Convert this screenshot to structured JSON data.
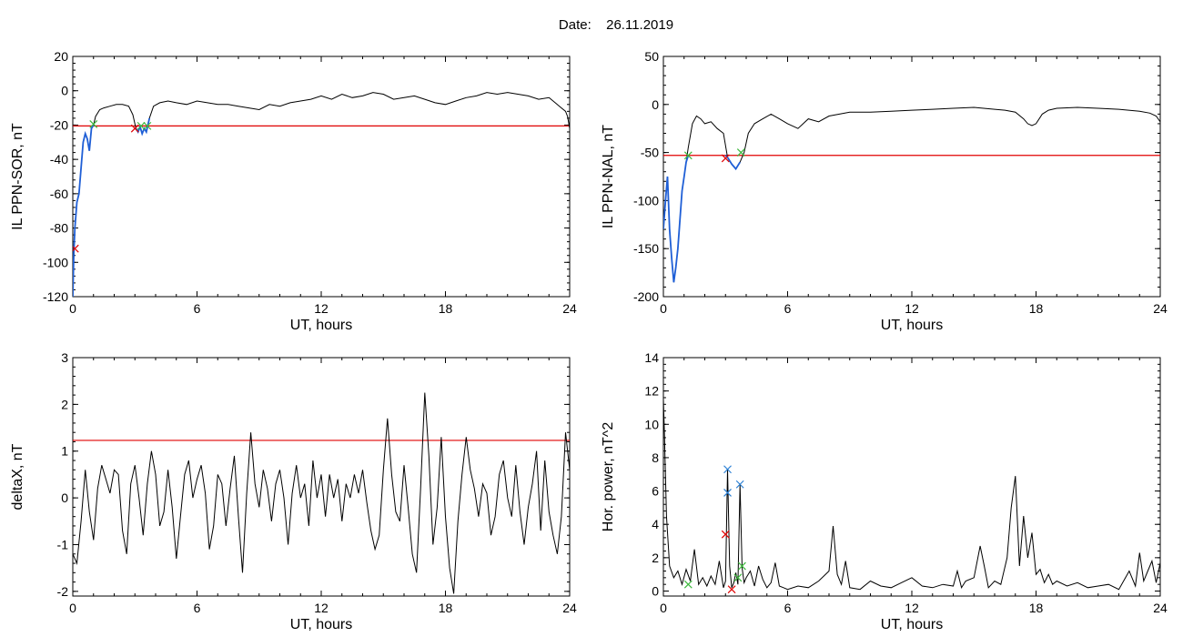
{
  "figure": {
    "date_label": "Date:",
    "date_value": "26.11.2019"
  },
  "colors": {
    "trace": "#000000",
    "threshold": "#e00000",
    "highlight": "#1f5fd6",
    "marker_red": "#e00000",
    "marker_green": "#3cb83c",
    "marker_blue": "#2a7fd4"
  },
  "chart_data": [
    {
      "id": "il-sor",
      "type": "line",
      "title": "",
      "xlabel": "UT, hours",
      "ylabel": "IL PPN-SOR, nT",
      "xlim": [
        0,
        24
      ],
      "ylim": [
        -120,
        20
      ],
      "xticks": [
        0,
        6,
        12,
        18,
        24
      ],
      "yticks": [
        -120,
        -100,
        -80,
        -60,
        -40,
        -20,
        0,
        20
      ],
      "grid": false,
      "threshold": -20.5,
      "series": [
        {
          "role": "trace",
          "x": [
            0,
            0.05,
            0.1,
            0.2,
            0.3,
            0.4,
            0.5,
            0.6,
            0.7,
            0.8,
            0.9,
            1.0,
            1.1,
            1.3,
            1.5,
            1.8,
            2.1,
            2.4,
            2.7,
            2.9,
            3.05,
            3.15,
            3.25,
            3.35,
            3.45,
            3.55,
            3.7,
            3.9,
            4.2,
            4.6,
            5.0,
            5.5,
            6.0,
            6.5,
            7.0,
            7.5,
            8.0,
            8.5,
            9.0,
            9.5,
            10.0,
            10.5,
            11.0,
            11.5,
            12.0,
            12.5,
            13.0,
            13.5,
            14.0,
            14.5,
            15.0,
            15.5,
            16.0,
            16.5,
            17.0,
            17.5,
            18.0,
            18.5,
            19.0,
            19.5,
            20.0,
            20.5,
            21.0,
            21.5,
            22.0,
            22.5,
            23.0,
            23.3,
            23.6,
            23.8,
            23.9,
            24.0
          ],
          "y": [
            -120,
            -95,
            -80,
            -65,
            -60,
            -45,
            -30,
            -25,
            -28,
            -35,
            -22,
            -20,
            -15,
            -11,
            -10,
            -9,
            -8,
            -8,
            -9,
            -14,
            -22,
            -24,
            -21,
            -25,
            -22,
            -24,
            -16,
            -9,
            -7,
            -6,
            -7,
            -8,
            -6,
            -7,
            -8,
            -8,
            -9,
            -10,
            -11,
            -8,
            -9,
            -7,
            -6,
            -5,
            -3,
            -5,
            -2,
            -4,
            -3,
            -1,
            -2,
            -5,
            -4,
            -3,
            -5,
            -7,
            -8,
            -6,
            -4,
            -3,
            -1,
            -2,
            -1,
            -2,
            -3,
            -5,
            -4,
            -7,
            -10,
            -12,
            -15,
            -22
          ]
        },
        {
          "role": "highlight",
          "x": [
            0,
            0.05,
            0.1,
            0.2,
            0.3,
            0.4,
            0.5,
            0.6,
            0.7,
            0.8,
            0.9,
            1.0
          ],
          "y": [
            -120,
            -95,
            -80,
            -65,
            -60,
            -45,
            -30,
            -25,
            -28,
            -35,
            -22,
            -20
          ]
        },
        {
          "role": "highlight",
          "x": [
            3.05,
            3.15,
            3.25,
            3.35,
            3.45,
            3.55,
            3.7
          ],
          "y": [
            -22,
            -24,
            -21,
            -25,
            -22,
            -24,
            -16
          ]
        }
      ],
      "markers": [
        {
          "x": 0.1,
          "y": -92,
          "color": "red"
        },
        {
          "x": 1.0,
          "y": -19.5,
          "color": "green"
        },
        {
          "x": 3.0,
          "y": -22,
          "color": "red"
        },
        {
          "x": 3.3,
          "y": -20.5,
          "color": "green"
        },
        {
          "x": 3.6,
          "y": -20.5,
          "color": "green"
        }
      ]
    },
    {
      "id": "il-nal",
      "type": "line",
      "title": "",
      "xlabel": "UT, hours",
      "ylabel": "IL PPN-NAL, nT",
      "xlim": [
        0,
        24
      ],
      "ylim": [
        -200,
        50
      ],
      "xticks": [
        0,
        6,
        12,
        18,
        24
      ],
      "yticks": [
        -200,
        -150,
        -100,
        -50,
        0,
        50
      ],
      "grid": false,
      "threshold": -53,
      "series": [
        {
          "role": "trace",
          "x": [
            0,
            0.1,
            0.2,
            0.3,
            0.4,
            0.5,
            0.6,
            0.7,
            0.8,
            0.9,
            1.0,
            1.1,
            1.2,
            1.4,
            1.6,
            1.8,
            2.0,
            2.3,
            2.6,
            2.9,
            3.1,
            3.3,
            3.5,
            3.7,
            3.9,
            4.1,
            4.4,
            4.8,
            5.2,
            5.6,
            6.0,
            6.5,
            7.0,
            7.5,
            8.0,
            8.5,
            9.0,
            10.0,
            11.0,
            12.0,
            13.0,
            14.0,
            15.0,
            16.0,
            16.5,
            17.0,
            17.4,
            17.6,
            17.8,
            18.0,
            18.3,
            18.6,
            19.0,
            20.0,
            21.0,
            22.0,
            23.0,
            23.5,
            23.8,
            24.0
          ],
          "y": [
            -130,
            -100,
            -75,
            -130,
            -160,
            -185,
            -170,
            -150,
            -120,
            -90,
            -75,
            -60,
            -45,
            -20,
            -12,
            -15,
            -20,
            -18,
            -25,
            -30,
            -55,
            -62,
            -67,
            -60,
            -50,
            -30,
            -20,
            -15,
            -10,
            -15,
            -20,
            -25,
            -15,
            -18,
            -12,
            -10,
            -8,
            -8,
            -7,
            -6,
            -5,
            -4,
            -3,
            -5,
            -6,
            -8,
            -15,
            -20,
            -22,
            -20,
            -10,
            -6,
            -4,
            -3,
            -4,
            -5,
            -7,
            -9,
            -12,
            -18
          ]
        },
        {
          "role": "highlight",
          "x": [
            0,
            0.1,
            0.2,
            0.3,
            0.4,
            0.5,
            0.6,
            0.7,
            0.8,
            0.9,
            1.0,
            1.1,
            1.2
          ],
          "y": [
            -130,
            -100,
            -75,
            -130,
            -160,
            -185,
            -170,
            -150,
            -120,
            -90,
            -75,
            -60,
            -53
          ]
        },
        {
          "role": "highlight",
          "x": [
            3.0,
            3.1,
            3.3,
            3.5,
            3.7
          ],
          "y": [
            -53,
            -55,
            -62,
            -67,
            -60
          ]
        }
      ],
      "markers": [
        {
          "x": 1.2,
          "y": -53,
          "color": "green"
        },
        {
          "x": 3.0,
          "y": -56,
          "color": "red"
        },
        {
          "x": 3.75,
          "y": -50,
          "color": "green"
        }
      ]
    },
    {
      "id": "deltax",
      "type": "line",
      "title": "",
      "xlabel": "UT, hours",
      "ylabel": "deltaX, nT",
      "xlim": [
        0,
        24
      ],
      "ylim": [
        -2.1,
        3
      ],
      "xticks": [
        0,
        6,
        12,
        18,
        24
      ],
      "yticks": [
        -2,
        -1,
        0,
        1,
        2,
        3
      ],
      "grid": false,
      "threshold": 1.23,
      "series": [
        {
          "role": "trace",
          "x": [
            0,
            0.2,
            0.4,
            0.6,
            0.8,
            1.0,
            1.2,
            1.4,
            1.6,
            1.8,
            2.0,
            2.2,
            2.4,
            2.6,
            2.8,
            3.0,
            3.2,
            3.4,
            3.6,
            3.8,
            4.0,
            4.2,
            4.4,
            4.6,
            4.8,
            5.0,
            5.2,
            5.4,
            5.6,
            5.8,
            6.0,
            6.2,
            6.4,
            6.6,
            6.8,
            7.0,
            7.2,
            7.4,
            7.6,
            7.8,
            8.0,
            8.2,
            8.4,
            8.6,
            8.8,
            9.0,
            9.2,
            9.4,
            9.6,
            9.8,
            10.0,
            10.2,
            10.4,
            10.6,
            10.8,
            11.0,
            11.2,
            11.4,
            11.6,
            11.8,
            12.0,
            12.2,
            12.4,
            12.6,
            12.8,
            13.0,
            13.2,
            13.4,
            13.6,
            13.8,
            14.0,
            14.2,
            14.4,
            14.6,
            14.8,
            15.0,
            15.2,
            15.4,
            15.6,
            15.8,
            16.0,
            16.2,
            16.4,
            16.6,
            16.8,
            17.0,
            17.2,
            17.4,
            17.6,
            17.8,
            18.0,
            18.2,
            18.4,
            18.6,
            18.8,
            19.0,
            19.2,
            19.4,
            19.6,
            19.8,
            20.0,
            20.2,
            20.4,
            20.6,
            20.8,
            21.0,
            21.2,
            21.4,
            21.6,
            21.8,
            22.0,
            22.2,
            22.4,
            22.6,
            22.8,
            23.0,
            23.2,
            23.4,
            23.6,
            23.8,
            24.0
          ],
          "y": [
            -1.2,
            -1.4,
            -0.5,
            0.6,
            -0.3,
            -0.9,
            0.2,
            0.7,
            0.4,
            0.1,
            0.6,
            0.5,
            -0.7,
            -1.2,
            0.3,
            0.7,
            0.0,
            -0.8,
            0.3,
            1.0,
            0.5,
            -0.6,
            -0.3,
            0.6,
            -0.2,
            -1.3,
            -0.4,
            0.5,
            0.8,
            0.0,
            0.4,
            0.7,
            0.1,
            -1.1,
            -0.6,
            0.5,
            0.3,
            -0.6,
            0.2,
            0.9,
            -0.4,
            -1.6,
            0.1,
            1.4,
            0.3,
            -0.2,
            0.6,
            0.2,
            -0.5,
            0.3,
            0.6,
            0.0,
            -1.0,
            0.1,
            0.7,
            0.0,
            0.3,
            -0.6,
            0.8,
            0.0,
            0.5,
            -0.4,
            0.5,
            0.0,
            0.4,
            -0.5,
            0.3,
            0.0,
            0.5,
            0.1,
            0.6,
            -0.1,
            -0.7,
            -1.1,
            -0.8,
            0.6,
            1.7,
            0.5,
            -0.3,
            -0.5,
            0.7,
            -0.2,
            -1.2,
            -1.6,
            0.2,
            2.25,
            0.9,
            -1.0,
            -0.2,
            1.3,
            -0.4,
            -1.5,
            -2.05,
            -0.5,
            0.5,
            1.3,
            0.6,
            0.2,
            -0.4,
            0.3,
            0.1,
            -0.8,
            -0.4,
            0.5,
            0.8,
            0.0,
            -0.4,
            0.7,
            -0.3,
            -1.0,
            -0.2,
            0.3,
            1.0,
            -0.7,
            0.8,
            -0.3,
            -0.8,
            -1.2,
            -0.4,
            1.4,
            0.6
          ]
        }
      ],
      "markers": []
    },
    {
      "id": "hor-power",
      "type": "line",
      "title": "",
      "xlabel": "UT, hours",
      "ylabel": "Hor. power, nT^2",
      "xlim": [
        0,
        24
      ],
      "ylim": [
        -0.3,
        14
      ],
      "xticks": [
        0,
        6,
        12,
        18,
        24
      ],
      "yticks": [
        0,
        2,
        4,
        6,
        8,
        10,
        12,
        14
      ],
      "grid": false,
      "threshold": null,
      "series": [
        {
          "role": "trace",
          "x": [
            0,
            0.05,
            0.15,
            0.3,
            0.5,
            0.7,
            0.9,
            1.1,
            1.3,
            1.5,
            1.7,
            1.9,
            2.1,
            2.3,
            2.5,
            2.7,
            2.9,
            3.0,
            3.1,
            3.2,
            3.3,
            3.4,
            3.5,
            3.6,
            3.7,
            3.8,
            3.9,
            4.0,
            4.2,
            4.4,
            4.6,
            4.8,
            5.0,
            5.2,
            5.4,
            5.6,
            5.8,
            6.0,
            6.5,
            7.0,
            7.5,
            8.0,
            8.2,
            8.4,
            8.6,
            8.8,
            9.0,
            9.5,
            10.0,
            10.5,
            11.0,
            11.5,
            12.0,
            12.5,
            13.0,
            13.5,
            14.0,
            14.2,
            14.4,
            14.6,
            15.0,
            15.3,
            15.5,
            15.7,
            16.0,
            16.3,
            16.6,
            16.8,
            17.0,
            17.2,
            17.4,
            17.6,
            17.8,
            18.0,
            18.2,
            18.4,
            18.6,
            18.8,
            19.0,
            19.5,
            20.0,
            20.5,
            21.0,
            21.5,
            22.0,
            22.5,
            22.8,
            23.0,
            23.2,
            23.4,
            23.6,
            23.8,
            24.0
          ],
          "y": [
            11.5,
            9.5,
            4.5,
            1.5,
            0.8,
            1.2,
            0.4,
            1.3,
            0.6,
            2.5,
            0.4,
            0.8,
            0.3,
            0.9,
            0.4,
            1.8,
            0.2,
            0.6,
            7.3,
            1.5,
            0.2,
            0.5,
            1.1,
            0.4,
            6.4,
            1.4,
            0.5,
            0.8,
            1.2,
            0.3,
            1.5,
            0.7,
            0.2,
            0.5,
            1.7,
            0.3,
            0.2,
            0.1,
            0.3,
            0.2,
            0.6,
            1.2,
            3.9,
            1.0,
            0.4,
            1.8,
            0.2,
            0.1,
            0.6,
            0.3,
            0.2,
            0.5,
            0.8,
            0.3,
            0.2,
            0.4,
            0.3,
            1.2,
            0.2,
            0.6,
            0.8,
            2.7,
            1.5,
            0.2,
            0.6,
            0.4,
            2.0,
            5.0,
            6.9,
            1.5,
            4.5,
            2.0,
            3.5,
            1.0,
            1.3,
            0.5,
            1.0,
            0.4,
            0.6,
            0.3,
            0.5,
            0.2,
            0.3,
            0.4,
            0.1,
            1.2,
            0.3,
            2.3,
            0.6,
            1.2,
            1.8,
            0.5,
            1.7
          ]
        }
      ],
      "markers": [
        {
          "x": 3.1,
          "y": 7.3,
          "color": "blue"
        },
        {
          "x": 3.1,
          "y": 5.9,
          "color": "blue"
        },
        {
          "x": 3.7,
          "y": 6.4,
          "color": "blue"
        },
        {
          "x": 3.0,
          "y": 3.4,
          "color": "red"
        },
        {
          "x": 3.3,
          "y": 0.1,
          "color": "red"
        },
        {
          "x": 1.2,
          "y": 0.4,
          "color": "green"
        },
        {
          "x": 3.6,
          "y": 0.8,
          "color": "green"
        },
        {
          "x": 3.8,
          "y": 1.5,
          "color": "green"
        }
      ]
    }
  ]
}
